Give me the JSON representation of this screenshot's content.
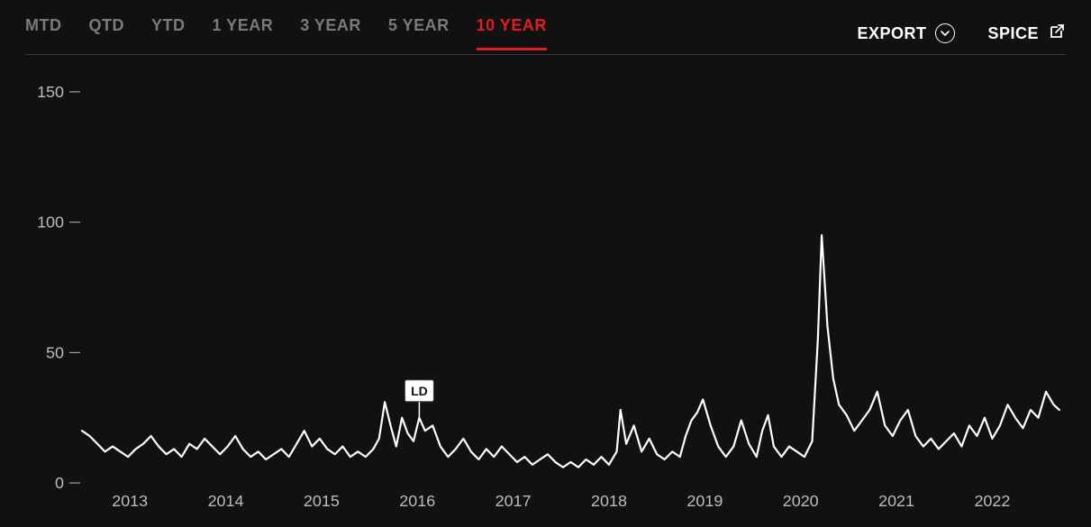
{
  "tabs": [
    {
      "label": "MTD",
      "active": false
    },
    {
      "label": "QTD",
      "active": false
    },
    {
      "label": "YTD",
      "active": false
    },
    {
      "label": "1 YEAR",
      "active": false
    },
    {
      "label": "3 YEAR",
      "active": false
    },
    {
      "label": "5 YEAR",
      "active": false
    },
    {
      "label": "10 YEAR",
      "active": true
    }
  ],
  "actions": {
    "export": "EXPORT",
    "spice": "SPICE"
  },
  "chart": {
    "type": "line",
    "background_color": "#111111",
    "line_color": "#ffffff",
    "line_width": 2.2,
    "axis_color": "#bdbdbd",
    "top_border_color": "#3a3a3a",
    "active_tab_color": "#e31b23",
    "inactive_tab_color": "#7a7a7a",
    "text_color": "#ffffff",
    "y": {
      "min": 0,
      "max": 160,
      "ticks": [
        0,
        50,
        100,
        150
      ],
      "tick_fontsize": 18
    },
    "x": {
      "min": 2012.5,
      "max": 2022.7,
      "ticks": [
        2013,
        2014,
        2015,
        2016,
        2017,
        2018,
        2019,
        2020,
        2021,
        2022
      ],
      "tick_fontsize": 18
    },
    "marker": {
      "label": "LD",
      "x": 2016.02,
      "box_color": "#ffffff",
      "text_color": "#111111"
    },
    "series": [
      [
        2012.5,
        20
      ],
      [
        2012.58,
        18
      ],
      [
        2012.66,
        15
      ],
      [
        2012.74,
        12
      ],
      [
        2012.82,
        14
      ],
      [
        2012.9,
        12
      ],
      [
        2012.98,
        10
      ],
      [
        2013.06,
        13
      ],
      [
        2013.14,
        15
      ],
      [
        2013.22,
        18
      ],
      [
        2013.3,
        14
      ],
      [
        2013.38,
        11
      ],
      [
        2013.46,
        13
      ],
      [
        2013.54,
        10
      ],
      [
        2013.62,
        15
      ],
      [
        2013.7,
        13
      ],
      [
        2013.78,
        17
      ],
      [
        2013.86,
        14
      ],
      [
        2013.94,
        11
      ],
      [
        2014.02,
        14
      ],
      [
        2014.1,
        18
      ],
      [
        2014.18,
        13
      ],
      [
        2014.26,
        10
      ],
      [
        2014.34,
        12
      ],
      [
        2014.42,
        9
      ],
      [
        2014.5,
        11
      ],
      [
        2014.58,
        13
      ],
      [
        2014.66,
        10
      ],
      [
        2014.74,
        15
      ],
      [
        2014.82,
        20
      ],
      [
        2014.9,
        14
      ],
      [
        2014.98,
        17
      ],
      [
        2015.06,
        13
      ],
      [
        2015.14,
        11
      ],
      [
        2015.22,
        14
      ],
      [
        2015.3,
        10
      ],
      [
        2015.38,
        12
      ],
      [
        2015.46,
        10
      ],
      [
        2015.54,
        13
      ],
      [
        2015.6,
        17
      ],
      [
        2015.66,
        31
      ],
      [
        2015.72,
        22
      ],
      [
        2015.78,
        14
      ],
      [
        2015.84,
        25
      ],
      [
        2015.9,
        19
      ],
      [
        2015.96,
        16
      ],
      [
        2016.02,
        25
      ],
      [
        2016.08,
        20
      ],
      [
        2016.16,
        22
      ],
      [
        2016.24,
        14
      ],
      [
        2016.32,
        10
      ],
      [
        2016.4,
        13
      ],
      [
        2016.48,
        17
      ],
      [
        2016.56,
        12
      ],
      [
        2016.64,
        9
      ],
      [
        2016.72,
        13
      ],
      [
        2016.8,
        10
      ],
      [
        2016.88,
        14
      ],
      [
        2016.96,
        11
      ],
      [
        2017.04,
        8
      ],
      [
        2017.12,
        10
      ],
      [
        2017.2,
        7
      ],
      [
        2017.28,
        9
      ],
      [
        2017.36,
        11
      ],
      [
        2017.44,
        8
      ],
      [
        2017.52,
        6
      ],
      [
        2017.6,
        8
      ],
      [
        2017.68,
        6
      ],
      [
        2017.76,
        9
      ],
      [
        2017.84,
        7
      ],
      [
        2017.92,
        10
      ],
      [
        2018.0,
        7
      ],
      [
        2018.08,
        12
      ],
      [
        2018.12,
        28
      ],
      [
        2018.18,
        15
      ],
      [
        2018.26,
        22
      ],
      [
        2018.34,
        12
      ],
      [
        2018.42,
        17
      ],
      [
        2018.5,
        11
      ],
      [
        2018.58,
        9
      ],
      [
        2018.66,
        12
      ],
      [
        2018.74,
        10
      ],
      [
        2018.8,
        18
      ],
      [
        2018.86,
        24
      ],
      [
        2018.92,
        27
      ],
      [
        2018.98,
        32
      ],
      [
        2019.06,
        22
      ],
      [
        2019.14,
        14
      ],
      [
        2019.22,
        10
      ],
      [
        2019.3,
        14
      ],
      [
        2019.38,
        24
      ],
      [
        2019.46,
        15
      ],
      [
        2019.54,
        10
      ],
      [
        2019.6,
        20
      ],
      [
        2019.66,
        26
      ],
      [
        2019.72,
        14
      ],
      [
        2019.8,
        10
      ],
      [
        2019.88,
        14
      ],
      [
        2019.96,
        12
      ],
      [
        2020.04,
        10
      ],
      [
        2020.12,
        16
      ],
      [
        2020.18,
        55
      ],
      [
        2020.22,
        95
      ],
      [
        2020.28,
        60
      ],
      [
        2020.34,
        40
      ],
      [
        2020.4,
        30
      ],
      [
        2020.48,
        26
      ],
      [
        2020.56,
        20
      ],
      [
        2020.64,
        24
      ],
      [
        2020.72,
        28
      ],
      [
        2020.8,
        35
      ],
      [
        2020.88,
        22
      ],
      [
        2020.96,
        18
      ],
      [
        2021.04,
        24
      ],
      [
        2021.12,
        28
      ],
      [
        2021.2,
        18
      ],
      [
        2021.28,
        14
      ],
      [
        2021.36,
        17
      ],
      [
        2021.44,
        13
      ],
      [
        2021.52,
        16
      ],
      [
        2021.6,
        19
      ],
      [
        2021.68,
        14
      ],
      [
        2021.76,
        22
      ],
      [
        2021.84,
        18
      ],
      [
        2021.92,
        25
      ],
      [
        2022.0,
        17
      ],
      [
        2022.08,
        22
      ],
      [
        2022.16,
        30
      ],
      [
        2022.24,
        25
      ],
      [
        2022.32,
        21
      ],
      [
        2022.4,
        28
      ],
      [
        2022.48,
        25
      ],
      [
        2022.56,
        35
      ],
      [
        2022.64,
        30
      ],
      [
        2022.7,
        28
      ]
    ]
  }
}
